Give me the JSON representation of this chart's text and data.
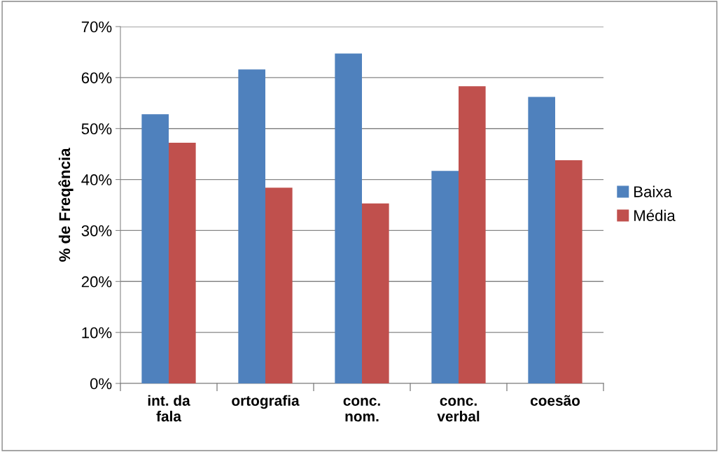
{
  "chart_data": {
    "type": "bar",
    "ylabel": "% de Freqência",
    "categories": [
      "int. da\nfala",
      "ortografia",
      "conc.\nnom.",
      "conc.\nverbal",
      "coesão"
    ],
    "series": [
      {
        "name": "Baixa",
        "color": "#4f81bd",
        "values": [
          52.8,
          61.6,
          64.7,
          41.7,
          56.2
        ]
      },
      {
        "name": "Média",
        "color": "#c0504d",
        "values": [
          47.2,
          38.4,
          35.3,
          58.3,
          43.8
        ]
      }
    ],
    "ylim": [
      0,
      70
    ],
    "yticks": [
      {
        "value": 0,
        "label": "0%"
      },
      {
        "value": 10,
        "label": "10%"
      },
      {
        "value": 20,
        "label": "20%"
      },
      {
        "value": 30,
        "label": "30%"
      },
      {
        "value": 40,
        "label": "40%"
      },
      {
        "value": 50,
        "label": "50%"
      },
      {
        "value": 60,
        "label": "60%"
      },
      {
        "value": 70,
        "label": "70%"
      }
    ],
    "grid": "y",
    "legend": "right"
  }
}
